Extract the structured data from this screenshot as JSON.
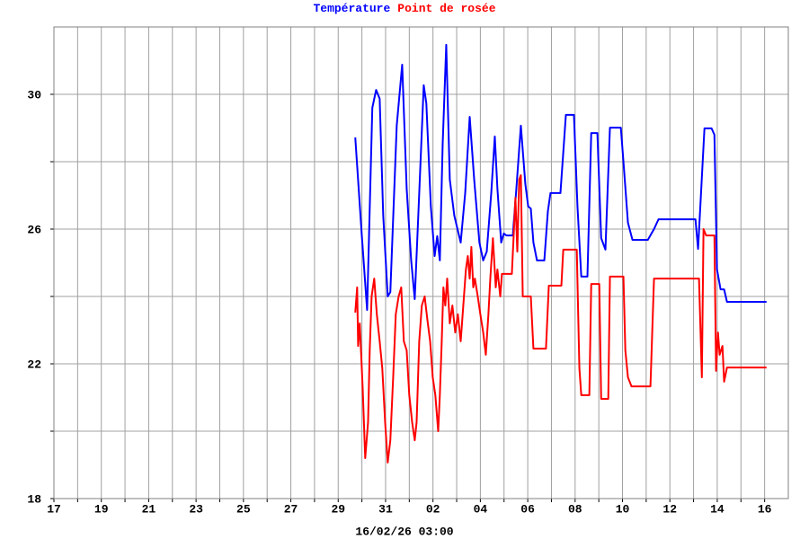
{
  "chart_data": {
    "type": "line",
    "legend": "top",
    "grid": true,
    "annotation": "16/02/26 03:00",
    "xlim": [
      0,
      31
    ],
    "ylim": [
      18,
      32
    ],
    "xticks": [
      {
        "value": 0,
        "label": "17"
      },
      {
        "value": 1,
        "label": null
      },
      {
        "value": 2,
        "label": "19"
      },
      {
        "value": 3,
        "label": null
      },
      {
        "value": 4,
        "label": "21"
      },
      {
        "value": 5,
        "label": null
      },
      {
        "value": 6,
        "label": "23"
      },
      {
        "value": 7,
        "label": null
      },
      {
        "value": 8,
        "label": "25"
      },
      {
        "value": 9,
        "label": null
      },
      {
        "value": 10,
        "label": "27"
      },
      {
        "value": 11,
        "label": null
      },
      {
        "value": 12,
        "label": "29"
      },
      {
        "value": 13,
        "label": null
      },
      {
        "value": 14,
        "label": "31"
      },
      {
        "value": 15,
        "label": null
      },
      {
        "value": 16,
        "label": "02"
      },
      {
        "value": 17,
        "label": null
      },
      {
        "value": 18,
        "label": "04"
      },
      {
        "value": 19,
        "label": null
      },
      {
        "value": 20,
        "label": "06"
      },
      {
        "value": 21,
        "label": null
      },
      {
        "value": 22,
        "label": "08"
      },
      {
        "value": 23,
        "label": null
      },
      {
        "value": 24,
        "label": "10"
      },
      {
        "value": 25,
        "label": null
      },
      {
        "value": 26,
        "label": "12"
      },
      {
        "value": 27,
        "label": null
      },
      {
        "value": 28,
        "label": "14"
      },
      {
        "value": 29,
        "label": null
      },
      {
        "value": 30,
        "label": "16"
      }
    ],
    "yticks": [
      18,
      {
        "value": 20,
        "label": null
      },
      22,
      {
        "value": 24,
        "label": null
      },
      26,
      {
        "value": 28,
        "label": null
      },
      30
    ],
    "series": [
      {
        "name": "Température",
        "color": "#0000ff",
        "x": [
          12.72,
          12.99,
          13.22,
          13.44,
          13.6,
          13.75,
          13.9,
          14.09,
          14.2,
          14.47,
          14.7,
          14.89,
          15.08,
          15.23,
          15.38,
          15.61,
          15.72,
          15.91,
          16.07,
          16.18,
          16.29,
          16.41,
          16.56,
          16.71,
          16.9,
          17.17,
          17.36,
          17.55,
          17.74,
          17.96,
          18.12,
          18.27,
          18.46,
          18.61,
          18.72,
          18.88,
          18.99,
          19.1,
          19.37,
          19.52,
          19.71,
          19.9,
          20.02,
          20.13,
          20.24,
          20.39,
          20.7,
          20.85,
          20.96,
          21.38,
          21.5,
          21.61,
          21.95,
          22.1,
          22.26,
          22.52,
          22.68,
          22.94,
          23.1,
          23.28,
          23.47,
          23.93,
          24.04,
          24.23,
          24.42,
          25.07,
          25.33,
          25.52,
          27.08,
          27.19,
          27.46,
          27.76,
          27.88,
          27.99,
          28.14,
          28.29,
          28.41,
          30.08
        ],
        "values": [
          28.72,
          25.87,
          23.6,
          29.6,
          30.13,
          29.87,
          26.4,
          24.0,
          24.13,
          29.07,
          30.88,
          27.2,
          25.07,
          23.92,
          26.4,
          30.27,
          29.73,
          26.67,
          25.2,
          25.79,
          25.07,
          28.53,
          31.47,
          27.47,
          26.4,
          25.6,
          27.07,
          29.33,
          27.47,
          25.6,
          25.07,
          25.33,
          27.07,
          28.75,
          27.2,
          25.6,
          25.87,
          25.81,
          25.81,
          27.2,
          29.07,
          27.33,
          26.67,
          26.61,
          25.6,
          25.07,
          25.07,
          26.53,
          27.07,
          27.07,
          28.27,
          29.39,
          29.39,
          26.67,
          24.59,
          24.59,
          28.85,
          28.85,
          25.73,
          25.39,
          29.01,
          29.01,
          28.0,
          26.19,
          25.68,
          25.68,
          26.0,
          26.29,
          26.29,
          25.41,
          28.99,
          28.99,
          28.8,
          24.8,
          24.21,
          24.21,
          23.84,
          23.84
        ]
      },
      {
        "name": "Point de rosée",
        "color": "#ff0000",
        "x": [
          12.72,
          12.8,
          12.84,
          12.91,
          13.03,
          13.14,
          13.26,
          13.33,
          13.41,
          13.52,
          13.63,
          13.75,
          13.86,
          13.98,
          14.09,
          14.2,
          14.32,
          14.43,
          14.55,
          14.66,
          14.77,
          14.89,
          15.0,
          15.12,
          15.23,
          15.31,
          15.42,
          15.53,
          15.65,
          15.76,
          15.88,
          15.99,
          16.1,
          16.22,
          16.29,
          16.37,
          16.44,
          16.52,
          16.6,
          16.71,
          16.82,
          16.94,
          17.05,
          17.17,
          17.28,
          17.39,
          17.47,
          17.55,
          17.62,
          17.7,
          17.77,
          17.89,
          18.0,
          18.12,
          18.23,
          18.34,
          18.42,
          18.53,
          18.65,
          18.72,
          18.84,
          18.91,
          19.03,
          19.33,
          19.41,
          19.48,
          19.56,
          19.64,
          19.71,
          19.79,
          20.13,
          20.24,
          20.77,
          20.89,
          21.42,
          21.5,
          22.07,
          22.18,
          22.26,
          22.6,
          22.68,
          23.02,
          23.1,
          23.4,
          23.47,
          24.04,
          24.12,
          24.23,
          24.38,
          25.18,
          25.33,
          27.23,
          27.35,
          27.42,
          27.53,
          27.88,
          27.95,
          28.03,
          28.1,
          28.22,
          28.29,
          28.41,
          30.08
        ],
        "values": [
          23.52,
          24.27,
          22.53,
          23.2,
          21.33,
          19.2,
          20.27,
          22.4,
          24.0,
          24.53,
          23.47,
          22.67,
          21.87,
          20.27,
          19.07,
          19.73,
          21.6,
          23.47,
          24.0,
          24.27,
          22.67,
          22.4,
          21.07,
          20.27,
          19.73,
          20.27,
          22.67,
          23.73,
          24.0,
          23.33,
          22.67,
          21.6,
          21.07,
          20.0,
          21.07,
          22.67,
          24.27,
          23.73,
          24.53,
          23.2,
          23.73,
          22.93,
          23.47,
          22.67,
          23.73,
          24.8,
          25.2,
          24.53,
          25.47,
          24.27,
          24.53,
          24.0,
          23.47,
          22.93,
          22.27,
          23.47,
          24.53,
          25.73,
          24.27,
          24.8,
          24.0,
          24.67,
          24.67,
          24.67,
          25.87,
          26.93,
          25.33,
          27.47,
          27.6,
          24.0,
          24.0,
          22.45,
          22.45,
          24.32,
          24.32,
          25.39,
          25.39,
          21.87,
          21.07,
          21.07,
          24.37,
          24.37,
          20.96,
          20.96,
          24.59,
          24.59,
          22.4,
          21.6,
          21.33,
          21.33,
          24.53,
          24.53,
          21.6,
          26.0,
          25.81,
          25.81,
          21.79,
          22.93,
          22.27,
          22.53,
          21.47,
          21.89,
          21.89
        ]
      }
    ]
  }
}
